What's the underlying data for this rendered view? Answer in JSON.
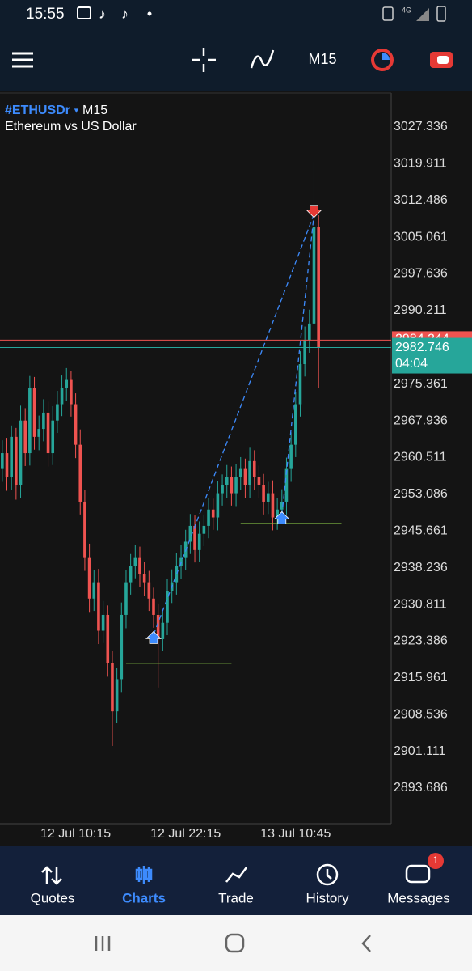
{
  "status_bar": {
    "time": "15:55",
    "network": "4G"
  },
  "chart_data": {
    "type": "candlestick",
    "title": "#ETHUSDr",
    "timeframe": "M15",
    "subtitle": "Ethereum vs US Dollar",
    "categories": [
      null,
      null,
      null,
      null,
      null,
      null,
      null,
      null,
      null,
      null,
      null,
      null,
      null,
      null,
      null,
      null,
      "12 Jul 10:15",
      null,
      null,
      null,
      null,
      null,
      null,
      null,
      null,
      null,
      null,
      null,
      null,
      null,
      null,
      null,
      null,
      null,
      null,
      null,
      null,
      null,
      null,
      null,
      "12 Jul 22:15",
      null,
      null,
      null,
      null,
      null,
      null,
      null,
      null,
      null,
      null,
      null,
      null,
      null,
      null,
      null,
      null,
      null,
      null,
      null,
      null,
      null,
      null,
      null,
      "13 Jul 10:45",
      null,
      null,
      null,
      null,
      null
    ],
    "open": [
      2958.2,
      2961.4,
      2956.5,
      2964.7,
      2954.9,
      2968.0,
      2961.4,
      2974.5,
      2964.7,
      2966.3,
      2969.6,
      2961.4,
      2968.0,
      2971.3,
      2974.5,
      2976.2,
      2971.3,
      2963.1,
      2951.6,
      2940.2,
      2932.0,
      2935.3,
      2925.5,
      2928.7,
      2918.9,
      2909.2,
      2915.7,
      2928.7,
      2935.3,
      2938.6,
      2940.2,
      2936.9,
      2935.3,
      2932.0,
      2928.7,
      2923.8,
      2927.1,
      2933.6,
      2935.3,
      2938.6,
      2940.2,
      2943.5,
      2946.7,
      2941.8,
      2945.1,
      2946.7,
      2950.0,
      2948.4,
      2953.3,
      2954.9,
      2956.5,
      2953.3,
      2956.5,
      2958.2,
      2954.9,
      2959.8,
      2956.5,
      2954.9,
      2951.6,
      2953.3,
      2948.4,
      2950.0,
      2951.6,
      2958.2,
      2963.1,
      2971.3,
      2979.4,
      2984.3,
      2987.6,
      3007.2
    ],
    "high": [
      2964.0,
      2964.5,
      2967.0,
      2966.5,
      2971.0,
      2970.5,
      2977.0,
      2976.8,
      2969.0,
      2972.3,
      2971.8,
      2970.9,
      2974.0,
      2977.1,
      2978.6,
      2978.0,
      2973.5,
      2966.2,
      2954.0,
      2943.1,
      2937.8,
      2938.0,
      2931.5,
      2930.6,
      2921.4,
      2918.0,
      2931.2,
      2937.7,
      2941.0,
      2942.9,
      2942.5,
      2939.4,
      2937.6,
      2934.2,
      2931.0,
      2929.4,
      2936.0,
      2937.9,
      2941.2,
      2942.8,
      2945.9,
      2949.1,
      2948.8,
      2947.6,
      2949.0,
      2952.4,
      2952.2,
      2955.8,
      2957.1,
      2959.0,
      2958.7,
      2959.2,
      2960.6,
      2960.3,
      2962.5,
      2962.0,
      2958.9,
      2957.2,
      2955.6,
      2955.9,
      2952.4,
      2954.1,
      2960.5,
      2965.6,
      2973.8,
      2982.0,
      2987.0,
      2990.4,
      3020.3,
      3009.5
    ],
    "low": [
      2955.6,
      2953.8,
      2953.9,
      2952.0,
      2952.3,
      2958.8,
      2958.9,
      2962.1,
      2962.0,
      2963.8,
      2958.7,
      2959.0,
      2965.5,
      2968.9,
      2972.0,
      2968.8,
      2960.4,
      2949.0,
      2937.6,
      2929.3,
      2929.5,
      2922.8,
      2923.0,
      2916.2,
      2902.2,
      2906.8,
      2913.1,
      2926.0,
      2932.8,
      2936.1,
      2934.4,
      2932.6,
      2929.5,
      2926.1,
      2914.0,
      2921.4,
      2924.6,
      2931.1,
      2932.8,
      2936.0,
      2937.7,
      2941.0,
      2939.3,
      2939.4,
      2942.6,
      2944.2,
      2945.9,
      2945.8,
      2950.8,
      2952.4,
      2950.8,
      2950.7,
      2954.0,
      2952.4,
      2952.3,
      2954.0,
      2952.4,
      2949.0,
      2949.1,
      2945.8,
      2945.9,
      2947.6,
      2949.0,
      2955.6,
      2960.6,
      2968.8,
      2976.9,
      2981.7,
      2985.0,
      2974.5
    ],
    "close": [
      2961.4,
      2956.5,
      2964.7,
      2954.9,
      2968.0,
      2961.4,
      2974.5,
      2964.7,
      2966.3,
      2969.6,
      2961.4,
      2968.0,
      2971.3,
      2974.5,
      2976.2,
      2971.3,
      2963.1,
      2951.6,
      2940.2,
      2932.0,
      2935.3,
      2925.5,
      2928.7,
      2918.9,
      2909.2,
      2915.7,
      2928.7,
      2935.3,
      2938.6,
      2940.2,
      2936.9,
      2935.3,
      2932.0,
      2928.7,
      2923.8,
      2927.1,
      2933.6,
      2935.3,
      2938.6,
      2940.2,
      2943.5,
      2946.7,
      2941.8,
      2945.1,
      2946.7,
      2950.0,
      2948.4,
      2953.3,
      2954.9,
      2956.5,
      2953.3,
      2956.5,
      2958.2,
      2954.9,
      2959.8,
      2956.5,
      2954.9,
      2951.6,
      2953.3,
      2948.4,
      2950.0,
      2951.6,
      2958.2,
      2963.1,
      2971.3,
      2979.4,
      2984.3,
      2987.6,
      3007.2,
      2982.7
    ],
    "up_color": "#26a69a",
    "down_color": "#ef5350",
    "ylim": [
      2886.49,
      3034.2
    ],
    "yticks": [
      3027.336,
      3019.911,
      3012.486,
      3005.061,
      2997.636,
      2990.211,
      2975.361,
      2967.936,
      2960.511,
      2953.086,
      2945.661,
      2938.236,
      2930.811,
      2923.386,
      2915.961,
      2908.536,
      2901.111,
      2893.686
    ],
    "bid_line": {
      "value": 2984.244,
      "color": "#ef5350"
    },
    "price_line": {
      "value": 2982.746,
      "color": "#26a69a",
      "countdown": "04:04"
    },
    "levels": [
      {
        "value": 2918.9,
        "start": 27,
        "end": 50,
        "color": "#7cb342"
      },
      {
        "value": 2947.2,
        "start": 52,
        "end": 74,
        "color": "#7cb342"
      }
    ],
    "trades": [
      {
        "side": "buy",
        "index": 33,
        "price": 2924.7,
        "color": "#3d8bfd"
      },
      {
        "side": "buy",
        "index": 61,
        "price": 2948.9,
        "color": "#3d8bfd"
      },
      {
        "side": "sell",
        "index": 68,
        "price": 3009.7,
        "color": "#e53935"
      }
    ],
    "trade_line_color": "#3d8bfd"
  },
  "nav": {
    "items": [
      "Quotes",
      "Charts",
      "Trade",
      "History",
      "Messages"
    ],
    "active": 1,
    "badge": 1
  }
}
